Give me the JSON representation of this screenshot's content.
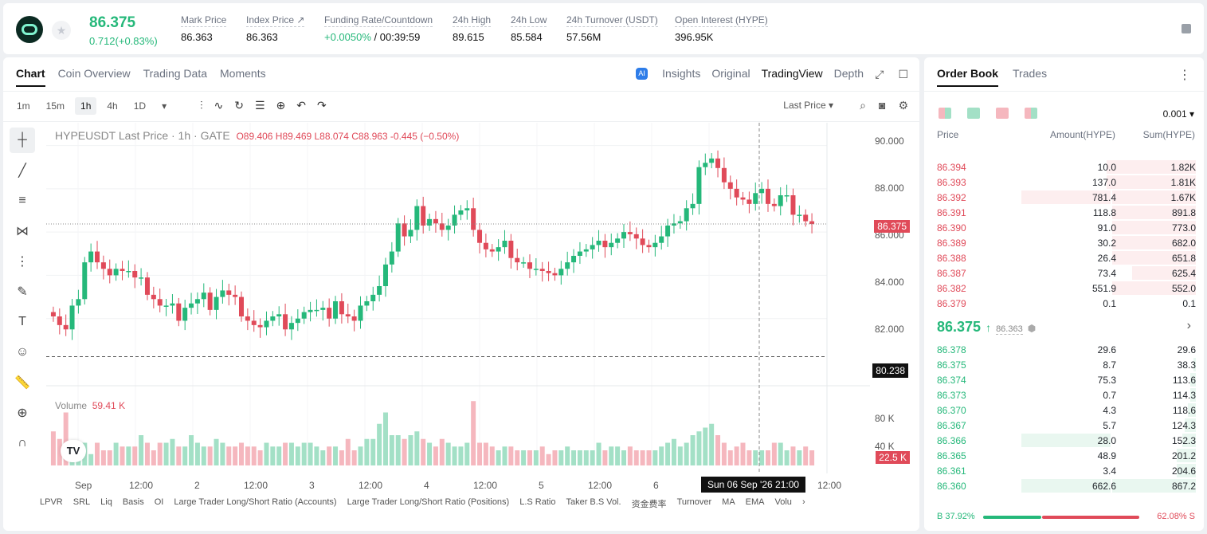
{
  "header": {
    "last_price": "86.375",
    "change": "0.712(+0.83%)",
    "stats": [
      {
        "label": "Mark Price",
        "value": "86.363"
      },
      {
        "label": "Index Price ↗",
        "value": "86.363"
      },
      {
        "label": "Funding Rate/Countdown",
        "value_green": "+0.0050%",
        "value": " / 00:39:59"
      },
      {
        "label": "24h High",
        "value": "89.615"
      },
      {
        "label": "24h Low",
        "value": "85.584"
      },
      {
        "label": "24h Turnover (USDT)",
        "value": "57.56M"
      },
      {
        "label": "Open Interest (HYPE)",
        "value": "396.95K"
      }
    ]
  },
  "chart_tabs": [
    "Chart",
    "Coin Overview",
    "Trading Data",
    "Moments"
  ],
  "view_tabs": [
    "Insights",
    "Original",
    "TradingView",
    "Depth"
  ],
  "timeframes": [
    "1m",
    "15m",
    "1h",
    "4h",
    "1D"
  ],
  "last_price_select": "Last Price",
  "legend": {
    "title": "HYPEUSDT Last Price · 1h · GATE",
    "ohlc": "O89.406  H89.469  L88.074  C88.963  -0.445  (−0.50%)"
  },
  "volume_legend": {
    "label": "Volume",
    "value": "59.41 K"
  },
  "y_axis": [
    "90.000",
    "88.000",
    "86.000",
    "84.000",
    "82.000"
  ],
  "vol_axis": [
    "80 K",
    "40 K"
  ],
  "x_axis": [
    "Sep",
    "12:00",
    "2",
    "12:00",
    "3",
    "12:00",
    "4",
    "12:00",
    "5",
    "12:00",
    "6",
    "12:00"
  ],
  "tags": {
    "price": "86.375",
    "cross": "80.238",
    "volume": "22.5 K",
    "time": "Sun 06 Sep '26   21:00"
  },
  "indicators": [
    "LPVR",
    "SRL",
    "Liq",
    "Basis",
    "OI",
    "Large Trader Long/Short Ratio (Accounts)",
    "Large Trader Long/Short Ratio (Positions)",
    "L.S Ratio",
    "Taker B.S Vol.",
    "资金费率",
    "Turnover",
    "MA",
    "EMA",
    "Volu"
  ],
  "orderbook": {
    "tabs": [
      "Order Book",
      "Trades"
    ],
    "precision": "0.001",
    "headers": {
      "price": "Price",
      "amount": "Amount(HYPE)",
      "sum": "Sum(HYPE)"
    },
    "asks": [
      {
        "price": "86.394",
        "amount": "10.0",
        "sum": "1.82K",
        "depth": 0.32
      },
      {
        "price": "86.393",
        "amount": "137.0",
        "sum": "1.81K",
        "depth": 0.32
      },
      {
        "price": "86.392",
        "amount": "781.4",
        "sum": "1.67K",
        "depth": 0.3
      },
      {
        "price": "86.391",
        "amount": "118.8",
        "sum": "891.8",
        "depth": 0.3
      },
      {
        "price": "86.390",
        "amount": "91.0",
        "sum": "773.0",
        "depth": 0.3
      },
      {
        "price": "86.389",
        "amount": "30.2",
        "sum": "682.0",
        "depth": 0.3
      },
      {
        "price": "86.388",
        "amount": "26.4",
        "sum": "651.8",
        "depth": 0.3
      },
      {
        "price": "86.387",
        "amount": "73.4",
        "sum": "625.4",
        "depth": 0.23
      },
      {
        "price": "86.382",
        "amount": "551.9",
        "sum": "552.0",
        "depth": 0.3
      },
      {
        "price": "86.379",
        "amount": "0.1",
        "sum": "0.1",
        "depth": 0.0
      }
    ],
    "ask_amount_highlight": [
      false,
      false,
      true,
      false,
      false,
      false,
      false,
      false,
      false,
      false
    ],
    "mid_price": "86.375",
    "mark_price": "86.363",
    "bids": [
      {
        "price": "86.378",
        "amount": "29.6",
        "sum": "29.6",
        "depth": 0.0
      },
      {
        "price": "86.375",
        "amount": "8.7",
        "sum": "38.3",
        "depth": 0.01
      },
      {
        "price": "86.374",
        "amount": "75.3",
        "sum": "113.6",
        "depth": 0.02
      },
      {
        "price": "86.373",
        "amount": "0.7",
        "sum": "114.3",
        "depth": 0.02
      },
      {
        "price": "86.370",
        "amount": "4.3",
        "sum": "118.6",
        "depth": 0.03
      },
      {
        "price": "86.367",
        "amount": "5.7",
        "sum": "124.3",
        "depth": 0.04
      },
      {
        "price": "86.366",
        "amount": "28.0",
        "sum": "152.3",
        "depth": 0.05
      },
      {
        "price": "86.365",
        "amount": "48.9",
        "sum": "201.2",
        "depth": 0.07
      },
      {
        "price": "86.361",
        "amount": "3.4",
        "sum": "204.6",
        "depth": 0.07
      },
      {
        "price": "86.360",
        "amount": "662.6",
        "sum": "867.2",
        "depth": 0.3
      }
    ],
    "bid_amount_highlight": [
      false,
      false,
      false,
      false,
      false,
      false,
      true,
      false,
      false,
      true
    ],
    "buy_ratio": "B 37.92%",
    "sell_ratio": "62.08% S"
  },
  "colors": {
    "up": "#25b87a",
    "down": "#e04a59"
  },
  "chart_data": {
    "type": "candlestick",
    "ylim": [
      80.0,
      90.5
    ],
    "closes": [
      82.1,
      81.7,
      81.5,
      82.6,
      82.9,
      84.6,
      85.1,
      84.6,
      84.3,
      84.0,
      84.3,
      84.2,
      84.2,
      83.9,
      83.9,
      83.1,
      82.9,
      82.6,
      82.6,
      82.7,
      81.9,
      82.5,
      82.7,
      82.9,
      83.2,
      82.4,
      83.0,
      83.3,
      83.1,
      83.0,
      82.1,
      81.9,
      81.7,
      81.6,
      81.9,
      82.1,
      82.2,
      81.5,
      81.8,
      82.0,
      82.3,
      82.4,
      82.4,
      82.5,
      82.0,
      82.8,
      82.2,
      82.1,
      81.9,
      82.6,
      82.8,
      83.1,
      83.5,
      84.5,
      85.1,
      86.4,
      85.8,
      86.1,
      87.2,
      86.3,
      86.6,
      86.4,
      86.1,
      86.3,
      86.8,
      87.0,
      87.1,
      86.1,
      85.5,
      85.2,
      85.1,
      85.3,
      85.6,
      84.8,
      84.6,
      84.6,
      84.3,
      84.3,
      84.2,
      84.1,
      84.0,
      84.3,
      84.6,
      84.9,
      85.1,
      85.2,
      85.4,
      85.6,
      85.3,
      85.5,
      85.7,
      86.0,
      85.9,
      85.7,
      85.4,
      85.3,
      85.5,
      85.8,
      86.3,
      86.4,
      86.5,
      87.1,
      87.3,
      89.0,
      89.2,
      89.4,
      88.96,
      88.3,
      88.0,
      87.6,
      87.5,
      87.3,
      87.8,
      88.0,
      87.3,
      87.2,
      87.7,
      87.7,
      86.8,
      86.8,
      86.5,
      86.37
    ],
    "volumes": [
      45,
      35,
      70,
      25,
      20,
      30,
      15,
      30,
      20,
      20,
      30,
      25,
      25,
      25,
      40,
      30,
      20,
      30,
      30,
      35,
      25,
      25,
      40,
      30,
      25,
      25,
      35,
      30,
      25,
      25,
      30,
      25,
      25,
      20,
      30,
      25,
      25,
      30,
      30,
      25,
      30,
      30,
      25,
      20,
      25,
      25,
      20,
      35,
      20,
      25,
      35,
      35,
      55,
      70,
      40,
      40,
      35,
      40,
      45,
      35,
      30,
      25,
      35,
      30,
      25,
      25,
      30,
      85,
      30,
      30,
      25,
      20,
      25,
      25,
      20,
      20,
      20,
      20,
      25,
      15,
      20,
      20,
      25,
      20,
      20,
      20,
      20,
      30,
      20,
      25,
      25,
      20,
      25,
      20,
      20,
      20,
      20,
      25,
      30,
      35,
      25,
      30,
      40,
      45,
      50,
      55,
      40,
      30,
      20,
      25,
      30,
      20,
      20,
      20,
      20,
      30,
      30,
      20,
      25,
      20,
      25,
      20
    ]
  }
}
